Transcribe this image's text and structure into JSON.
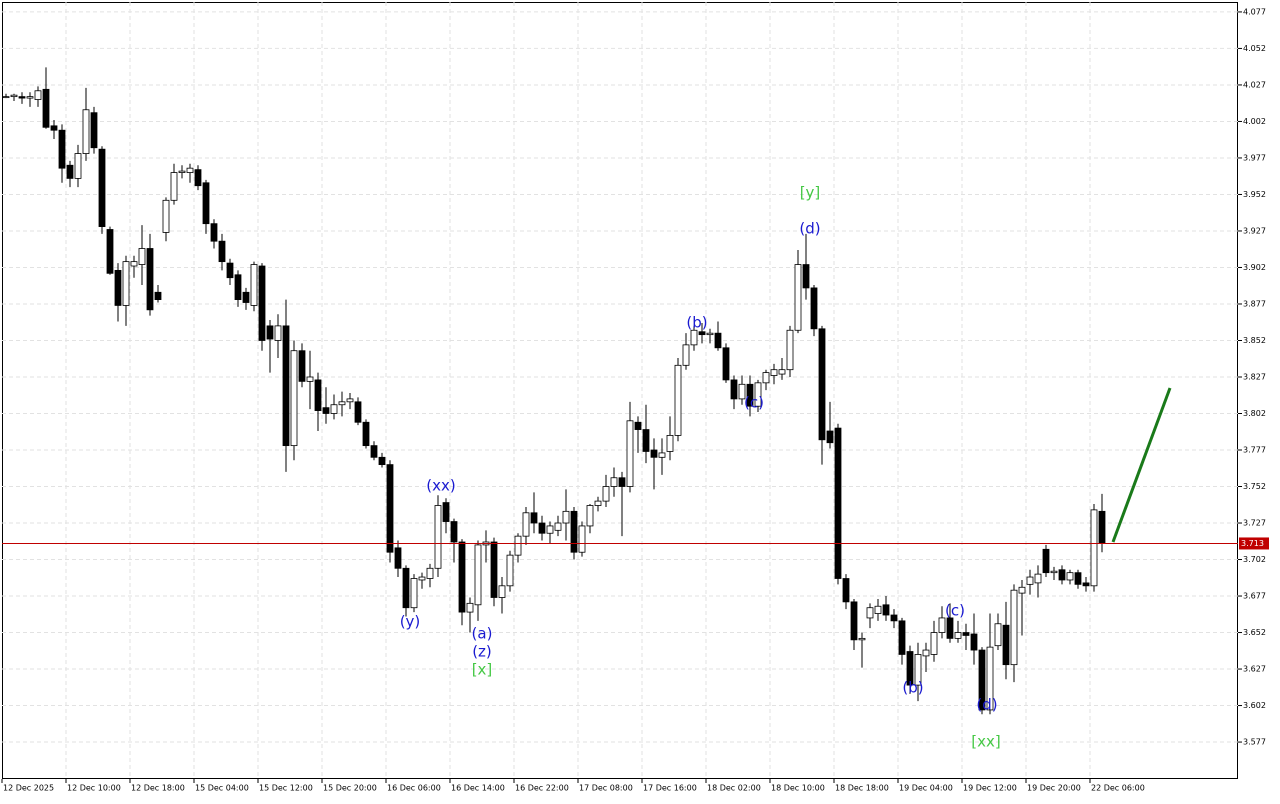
{
  "chart_data": {
    "type": "candlestick",
    "categories": [
      "12 Dec 2025",
      null,
      null,
      null,
      null,
      null,
      null,
      null,
      "12 Dec 10:00",
      null,
      null,
      null,
      null,
      null,
      null,
      null,
      "12 Dec 18:00",
      null,
      null,
      null,
      null,
      null,
      null,
      null,
      "15 Dec 04:00",
      null,
      null,
      null,
      null,
      null,
      null,
      null,
      "15 Dec 12:00",
      null,
      null,
      null,
      null,
      null,
      null,
      null,
      "15 Dec 20:00",
      null,
      null,
      null,
      null,
      null,
      null,
      null,
      "16 Dec 06:00",
      null,
      null,
      null,
      null,
      null,
      null,
      null,
      "16 Dec 14:00",
      null,
      null,
      null,
      null,
      null,
      null,
      null,
      "16 Dec 22:00",
      null,
      null,
      null,
      null,
      null,
      null,
      null,
      "17 Dec 08:00",
      null,
      null,
      null,
      null,
      null,
      null,
      null,
      "17 Dec 16:00",
      null,
      null,
      null,
      null,
      null,
      null,
      null,
      "18 Dec 02:00",
      null,
      null,
      null,
      null,
      null,
      null,
      null,
      "18 Dec 10:00",
      null,
      null,
      null,
      null,
      null,
      null,
      null,
      "18 Dec 18:00",
      null,
      null,
      null,
      null,
      null,
      null,
      null,
      "19 Dec 04:00",
      null,
      null,
      null,
      null,
      null,
      null,
      null,
      "19 Dec 12:00",
      null,
      null,
      null,
      null,
      null,
      null,
      null,
      "19 Dec 20:00",
      null,
      null,
      null,
      null,
      null,
      null,
      null,
      "22 Dec 06:00",
      null
    ],
    "open": [
      4.019,
      4.019,
      4.019,
      4.018,
      4.017,
      4.024,
      3.999,
      3.996,
      3.972,
      3.963,
      3.98,
      4.008,
      3.983,
      3.928,
      3.9,
      3.876,
      3.903,
      3.904,
      3.915,
      3.885,
      3.926,
      3.948,
      3.967,
      3.967,
      3.969,
      3.96,
      3.932,
      3.92,
      3.905,
      3.897,
      3.885,
      3.876,
      3.903,
      3.862,
      3.852,
      3.862,
      3.78,
      3.845,
      3.824,
      3.825,
      3.806,
      3.802,
      3.808,
      3.81,
      3.81,
      3.796,
      3.78,
      3.772,
      3.767,
      3.71,
      3.696,
      3.669,
      3.688,
      3.689,
      3.696,
      3.741,
      3.728,
      3.714,
      3.666,
      3.671,
      3.712,
      3.714,
      3.676,
      3.684,
      3.705,
      3.718,
      3.734,
      3.727,
      3.72,
      3.722,
      3.727,
      3.735,
      3.707,
      3.725,
      3.739,
      3.742,
      3.752,
      3.758,
      3.752,
      3.796,
      3.791,
      3.777,
      3.772,
      3.776,
      3.787,
      3.835,
      3.849,
      3.858,
      3.856,
      3.857,
      3.847,
      3.825,
      3.812,
      3.822,
      3.807,
      3.823,
      3.828,
      3.829,
      3.832,
      3.859,
      3.904,
      3.888,
      3.86,
      3.79,
      3.792,
      3.689,
      3.673,
      3.647,
      3.662,
      3.665,
      3.671,
      3.664,
      3.66,
      3.639,
      3.616,
      3.636,
      3.637,
      3.652,
      3.662,
      3.648,
      3.652,
      3.651,
      3.64,
      3.599,
      3.643,
      3.657,
      3.63,
      3.679,
      3.685,
      3.686,
      3.709,
      3.693,
      3.695,
      3.688,
      3.693,
      3.686,
      3.684,
      3.735
    ],
    "high": [
      4.021,
      4.021,
      4.022,
      4.022,
      4.026,
      4.039,
      4.003,
      4.0,
      3.975,
      3.986,
      4.025,
      4.012,
      3.985,
      3.93,
      3.905,
      3.91,
      3.91,
      3.931,
      3.925,
      3.89,
      3.95,
      3.973,
      3.972,
      3.973,
      3.972,
      3.962,
      3.935,
      3.925,
      3.908,
      3.9,
      3.888,
      3.906,
      3.905,
      3.866,
      3.87,
      3.88,
      3.852,
      3.85,
      3.845,
      3.83,
      3.82,
      3.815,
      3.817,
      3.816,
      3.813,
      3.798,
      3.783,
      3.775,
      3.77,
      3.715,
      3.698,
      3.692,
      3.693,
      3.699,
      3.746,
      3.744,
      3.73,
      3.716,
      3.676,
      3.715,
      3.722,
      3.717,
      3.69,
      3.708,
      3.72,
      3.738,
      3.748,
      3.732,
      3.728,
      3.732,
      3.75,
      3.738,
      3.728,
      3.74,
      3.745,
      3.76,
      3.765,
      3.762,
      3.81,
      3.8,
      3.808,
      3.785,
      3.785,
      3.8,
      3.84,
      3.857,
      3.862,
      3.864,
      3.86,
      3.865,
      3.85,
      3.828,
      3.828,
      3.828,
      3.825,
      3.832,
      3.836,
      3.84,
      3.862,
      3.914,
      3.925,
      3.89,
      3.862,
      3.81,
      3.795,
      3.692,
      3.675,
      3.652,
      3.672,
      3.675,
      3.677,
      3.668,
      3.662,
      3.643,
      3.645,
      3.645,
      3.66,
      3.67,
      3.672,
      3.66,
      3.658,
      3.665,
      3.642,
      3.665,
      3.665,
      3.673,
      3.685,
      3.688,
      3.695,
      3.698,
      3.712,
      3.697,
      3.698,
      3.695,
      3.695,
      3.69,
      3.74,
      3.747
    ],
    "low": [
      4.018,
      4.016,
      4.014,
      4.012,
      4.012,
      3.997,
      3.99,
      3.96,
      3.957,
      3.957,
      3.975,
      3.98,
      3.925,
      3.897,
      3.865,
      3.862,
      3.895,
      3.89,
      3.869,
      3.878,
      3.92,
      3.945,
      3.963,
      3.96,
      3.955,
      3.925,
      3.915,
      3.9,
      3.89,
      3.875,
      3.873,
      3.872,
      3.845,
      3.83,
      3.84,
      3.762,
      3.77,
      3.82,
      3.805,
      3.79,
      3.795,
      3.798,
      3.8,
      3.805,
      3.794,
      3.778,
      3.77,
      3.765,
      3.7,
      3.69,
      3.663,
      3.666,
      3.682,
      3.683,
      3.69,
      3.72,
      3.7,
      3.657,
      3.652,
      3.66,
      3.7,
      3.67,
      3.665,
      3.68,
      3.7,
      3.712,
      3.72,
      3.715,
      3.713,
      3.718,
      3.715,
      3.702,
      3.704,
      3.72,
      3.735,
      3.738,
      3.745,
      3.718,
      3.748,
      3.775,
      3.768,
      3.75,
      3.76,
      3.77,
      3.783,
      3.832,
      3.845,
      3.85,
      3.85,
      3.845,
      3.823,
      3.805,
      3.808,
      3.8,
      3.803,
      3.818,
      3.822,
      3.825,
      3.827,
      3.857,
      3.88,
      3.855,
      3.767,
      3.778,
      3.685,
      3.668,
      3.64,
      3.628,
      3.655,
      3.66,
      3.66,
      3.655,
      3.63,
      3.61,
      3.605,
      3.625,
      3.632,
      3.648,
      3.645,
      3.645,
      3.64,
      3.63,
      3.596,
      3.596,
      3.64,
      3.62,
      3.618,
      3.65,
      3.678,
      3.676,
      3.69,
      3.688,
      3.685,
      3.685,
      3.682,
      3.68,
      3.68,
      3.707
    ],
    "close": [
      4.019,
      4.02,
      4.018,
      4.019,
      4.023,
      3.998,
      3.996,
      3.97,
      3.963,
      3.98,
      4.01,
      3.984,
      3.93,
      3.898,
      3.876,
      3.906,
      3.906,
      3.915,
      3.873,
      3.88,
      3.948,
      3.967,
      3.968,
      3.97,
      3.958,
      3.932,
      3.92,
      3.906,
      3.895,
      3.88,
      3.878,
      3.904,
      3.852,
      3.853,
      3.862,
      3.78,
      3.845,
      3.824,
      3.827,
      3.804,
      3.802,
      3.808,
      3.81,
      3.812,
      3.796,
      3.78,
      3.772,
      3.767,
      3.707,
      3.696,
      3.669,
      3.689,
      3.69,
      3.696,
      3.739,
      3.728,
      3.714,
      3.666,
      3.672,
      3.712,
      3.714,
      3.676,
      3.684,
      3.705,
      3.718,
      3.734,
      3.727,
      3.72,
      3.725,
      3.727,
      3.735,
      3.707,
      3.725,
      3.739,
      3.742,
      3.752,
      3.758,
      3.752,
      3.797,
      3.791,
      3.776,
      3.772,
      3.775,
      3.787,
      3.835,
      3.849,
      3.859,
      3.856,
      3.857,
      3.847,
      3.825,
      3.812,
      3.822,
      3.807,
      3.823,
      3.83,
      3.832,
      3.832,
      3.859,
      3.904,
      3.888,
      3.86,
      3.784,
      3.782,
      3.689,
      3.673,
      3.647,
      3.648,
      3.669,
      3.67,
      3.664,
      3.66,
      3.637,
      3.616,
      3.637,
      3.64,
      3.652,
      3.662,
      3.648,
      3.652,
      3.65,
      3.64,
      3.599,
      3.642,
      3.658,
      3.63,
      3.681,
      3.683,
      3.69,
      3.692,
      3.693,
      3.694,
      3.688,
      3.693,
      3.685,
      3.684,
      3.736,
      3.713
    ],
    "last_price": 3.713,
    "ylim": [
      3.5517,
      4.0838
    ],
    "yticks": [
      3.577,
      3.602,
      3.627,
      3.652,
      3.677,
      3.702,
      3.727,
      3.752,
      3.777,
      3.802,
      3.827,
      3.852,
      3.877,
      3.902,
      3.927,
      3.952,
      3.977,
      4.002,
      4.027,
      4.052,
      4.077
    ],
    "grid": true,
    "annotations": [
      {
        "text": "(xx)",
        "color": "#1a1ad0"
      },
      {
        "text": "(y)",
        "color": "#1a1ad0"
      },
      {
        "text": "(a)",
        "color": "#1a1ad0"
      },
      {
        "text": "(z)",
        "color": "#1a1ad0"
      },
      {
        "text": "[x]",
        "color": "#44c844"
      },
      {
        "text": "(b)",
        "color": "#1a1ad0"
      },
      {
        "text": "(c)",
        "color": "#1a1ad0"
      },
      {
        "text": "[y]",
        "color": "#44c844"
      },
      {
        "text": "(d)",
        "color": "#1a1ad0"
      },
      {
        "text": "(b)",
        "color": "#1a1ad0"
      },
      {
        "text": "(c)",
        "color": "#1a1ad0"
      },
      {
        "text": "(d)",
        "color": "#1a1ad0"
      },
      {
        "text": "[xx]",
        "color": "#44c844"
      }
    ]
  }
}
